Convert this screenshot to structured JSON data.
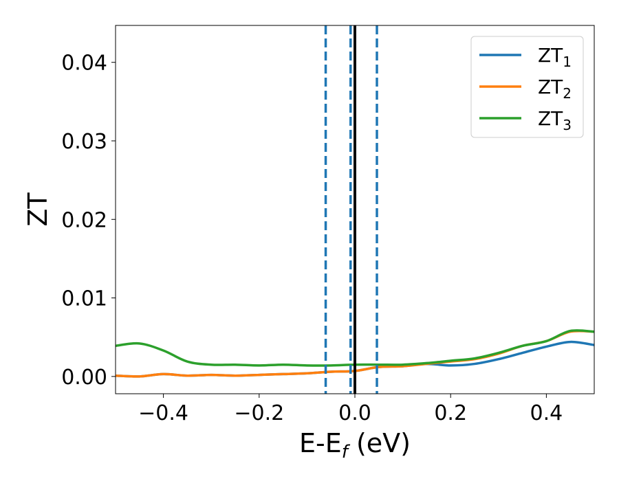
{
  "chart_data": {
    "type": "line",
    "xlabel": "E-E",
    "xlabel_sub": "f",
    "xlabel_unit": " (eV)",
    "ylabel": "ZT",
    "xlim": [
      -0.5,
      0.5
    ],
    "ylim": [
      -0.0022,
      0.0447
    ],
    "xticks": [
      -0.4,
      -0.2,
      0.0,
      0.2,
      0.4
    ],
    "xtick_labels": [
      "−0.4",
      "−0.2",
      "0.0",
      "0.2",
      "0.4"
    ],
    "yticks": [
      0.0,
      0.01,
      0.02,
      0.03,
      0.04
    ],
    "ytick_labels": [
      "0.00",
      "0.01",
      "0.02",
      "0.03",
      "0.04"
    ],
    "grid": false,
    "legend_position": "top-right",
    "vlines": [
      {
        "x": 0.0,
        "style": "solid",
        "color": "#000000"
      },
      {
        "x": -0.061,
        "style": "dashed",
        "color": "#1f77b4"
      },
      {
        "x": -0.009,
        "style": "dashed",
        "color": "#1f77b4"
      },
      {
        "x": 0.046,
        "style": "dashed",
        "color": "#1f77b4"
      }
    ],
    "series": [
      {
        "name": "ZT",
        "name_sub": "1",
        "color": "#1f77b4",
        "x": [
          -0.5,
          -0.45,
          -0.4,
          -0.35,
          -0.3,
          -0.25,
          -0.2,
          -0.15,
          -0.1,
          -0.05,
          0.0,
          0.05,
          0.1,
          0.15,
          0.2,
          0.25,
          0.3,
          0.35,
          0.4,
          0.45,
          0.5
        ],
        "y": [
          0.0001,
          0.0,
          0.0003,
          0.0001,
          0.0002,
          0.0001,
          0.0002,
          0.0003,
          0.0004,
          0.0006,
          0.0007,
          0.0012,
          0.0013,
          0.0016,
          0.0014,
          0.0016,
          0.0022,
          0.003,
          0.0038,
          0.0044,
          0.004
        ]
      },
      {
        "name": "ZT",
        "name_sub": "2",
        "color": "#ff7f0e",
        "x": [
          -0.5,
          -0.45,
          -0.4,
          -0.35,
          -0.3,
          -0.25,
          -0.2,
          -0.15,
          -0.1,
          -0.05,
          0.0,
          0.05,
          0.1,
          0.15,
          0.2,
          0.25,
          0.3,
          0.35,
          0.4,
          0.45,
          0.5
        ],
        "y": [
          0.0001,
          0.0,
          0.0003,
          0.0001,
          0.0002,
          0.0001,
          0.0002,
          0.0003,
          0.0004,
          0.0006,
          0.0007,
          0.0012,
          0.0013,
          0.0016,
          0.0019,
          0.0022,
          0.0029,
          0.0039,
          0.0045,
          0.0057,
          0.0057
        ]
      },
      {
        "name": "ZT",
        "name_sub": "3",
        "color": "#2ca02c",
        "x": [
          -0.5,
          -0.45,
          -0.4,
          -0.35,
          -0.3,
          -0.25,
          -0.2,
          -0.15,
          -0.1,
          -0.05,
          0.0,
          0.05,
          0.1,
          0.15,
          0.2,
          0.25,
          0.3,
          0.35,
          0.4,
          0.45,
          0.5
        ],
        "y": [
          0.0039,
          0.0042,
          0.0033,
          0.0019,
          0.0015,
          0.0015,
          0.0014,
          0.0015,
          0.0014,
          0.0014,
          0.0015,
          0.0015,
          0.0015,
          0.0017,
          0.002,
          0.0023,
          0.003,
          0.0039,
          0.0045,
          0.0058,
          0.0057
        ]
      }
    ]
  }
}
